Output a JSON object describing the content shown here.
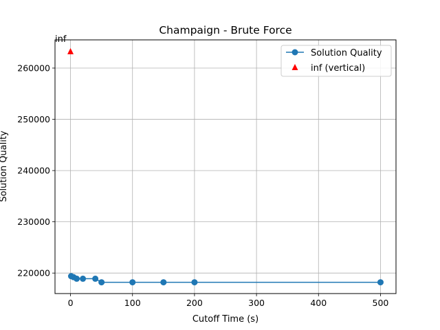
{
  "chart_data": {
    "type": "line",
    "title": "Champaign - Brute Force",
    "xlabel": "Cutoff Time (s)",
    "ylabel": "Solution Quality",
    "xlim": [
      -25,
      525
    ],
    "ylim": [
      216000,
      265500
    ],
    "xticks": [
      0,
      100,
      200,
      300,
      400,
      500
    ],
    "yticks": [
      220000,
      230000,
      240000,
      250000,
      260000
    ],
    "grid": true,
    "legend_position": "top-right",
    "series": [
      {
        "name": "Solution Quality",
        "color": "#1f77b4",
        "marker": "circle",
        "x": [
          1,
          5,
          10,
          20,
          40,
          50,
          100,
          150,
          200,
          500
        ],
        "y": [
          219400,
          219200,
          218900,
          218900,
          218900,
          218200,
          218200,
          218200,
          218200,
          218200
        ]
      },
      {
        "name": "inf (vertical)",
        "color": "#ff0000",
        "marker": "triangle",
        "x": [
          0
        ],
        "y": [
          263300
        ]
      }
    ],
    "annotations": [
      {
        "text": "inf",
        "x": -25,
        "y": 265500
      }
    ]
  }
}
